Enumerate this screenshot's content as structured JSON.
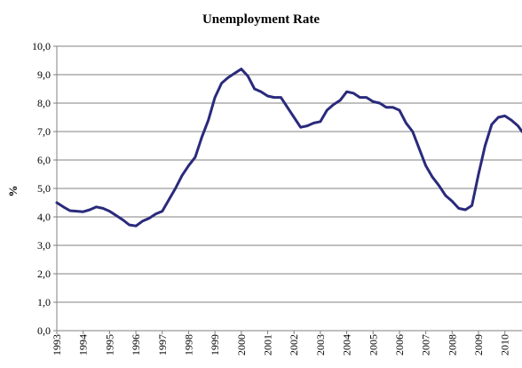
{
  "chart_data": {
    "type": "line",
    "title": "Unemployment Rate",
    "ylabel": "%",
    "xlabel": "",
    "ylim": [
      0,
      10
    ],
    "yticks": [
      "0,0",
      "1,0",
      "2,0",
      "3,0",
      "4,0",
      "5,0",
      "6,0",
      "7,0",
      "8,0",
      "9,0",
      "10,0"
    ],
    "xticks": [
      "1993",
      "1994",
      "1995",
      "1996",
      "1997",
      "1998",
      "1999",
      "2000",
      "2001",
      "2002",
      "2003",
      "2004",
      "2005",
      "2006",
      "2007",
      "2008",
      "2009",
      "2010"
    ],
    "xlim": [
      1993.0,
      2010.65
    ],
    "grid": true,
    "series": [
      {
        "name": "",
        "color": "#2a2a7c",
        "x": [
          1993.0,
          1993.25,
          1993.5,
          1993.75,
          1994.0,
          1994.25,
          1994.5,
          1994.75,
          1995.0,
          1995.25,
          1995.5,
          1995.75,
          1996.0,
          1996.25,
          1996.5,
          1996.75,
          1997.0,
          1997.25,
          1997.5,
          1997.75,
          1998.0,
          1998.25,
          1998.5,
          1998.75,
          1999.0,
          1999.25,
          1999.5,
          1999.75,
          2000.0,
          2000.25,
          2000.5,
          2000.75,
          2001.0,
          2001.25,
          2001.5,
          2001.75,
          2002.0,
          2002.25,
          2002.5,
          2002.75,
          2003.0,
          2003.25,
          2003.5,
          2003.75,
          2004.0,
          2004.25,
          2004.5,
          2004.75,
          2005.0,
          2005.25,
          2005.5,
          2005.75,
          2006.0,
          2006.25,
          2006.5,
          2006.75,
          2007.0,
          2007.25,
          2007.5,
          2007.75,
          2008.0,
          2008.25,
          2008.5,
          2008.75,
          2009.0,
          2009.25,
          2009.5,
          2009.75,
          2010.0,
          2010.25,
          2010.5,
          2010.65
        ],
        "values": [
          4.5,
          4.35,
          4.22,
          4.2,
          4.18,
          4.25,
          4.35,
          4.3,
          4.2,
          4.05,
          3.9,
          3.72,
          3.68,
          3.85,
          3.95,
          4.1,
          4.2,
          4.6,
          5.0,
          5.45,
          5.8,
          6.1,
          6.8,
          7.4,
          8.2,
          8.7,
          8.9,
          9.05,
          9.2,
          8.95,
          8.5,
          8.4,
          8.25,
          8.2,
          8.2,
          7.85,
          7.5,
          7.15,
          7.2,
          7.3,
          7.35,
          7.75,
          7.95,
          8.1,
          8.4,
          8.35,
          8.2,
          8.2,
          8.05,
          8.0,
          7.85,
          7.85,
          7.75,
          7.3,
          7.0,
          6.4,
          5.8,
          5.4,
          5.1,
          4.75,
          4.55,
          4.3,
          4.25,
          4.4,
          5.5,
          6.5,
          7.25,
          7.5,
          7.55,
          7.4,
          7.2,
          7.0
        ]
      }
    ]
  }
}
